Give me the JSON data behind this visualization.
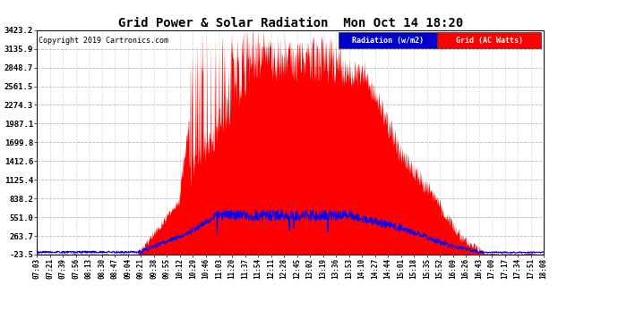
{
  "title": "Grid Power & Solar Radiation  Mon Oct 14 18:20",
  "copyright": "Copyright 2019 Cartronics.com",
  "legend_radiation": "Radiation (w/m2)",
  "legend_grid": "Grid (AC Watts)",
  "yticks": [
    -23.5,
    263.7,
    551.0,
    838.2,
    1125.4,
    1412.6,
    1699.8,
    1987.1,
    2274.3,
    2561.5,
    2848.7,
    3135.9,
    3423.2
  ],
  "ymin": -23.5,
  "ymax": 3423.2,
  "background_color": "#ffffff",
  "plot_bg_color": "#ffffff",
  "grid_color": "#aaaaaa",
  "radiation_color": "#0000ff",
  "grid_power_color": "#ff0000",
  "xtick_labels": [
    "07:03",
    "07:21",
    "07:39",
    "07:56",
    "08:13",
    "08:30",
    "08:47",
    "09:04",
    "09:21",
    "09:38",
    "09:55",
    "10:12",
    "10:29",
    "10:46",
    "11:03",
    "11:20",
    "11:37",
    "11:54",
    "12:11",
    "12:28",
    "12:45",
    "13:02",
    "13:19",
    "13:36",
    "13:53",
    "14:10",
    "14:27",
    "14:44",
    "15:01",
    "15:18",
    "15:35",
    "15:52",
    "16:09",
    "16:26",
    "16:43",
    "17:00",
    "17:17",
    "17:34",
    "17:51",
    "18:08"
  ],
  "n_fine": 1200
}
